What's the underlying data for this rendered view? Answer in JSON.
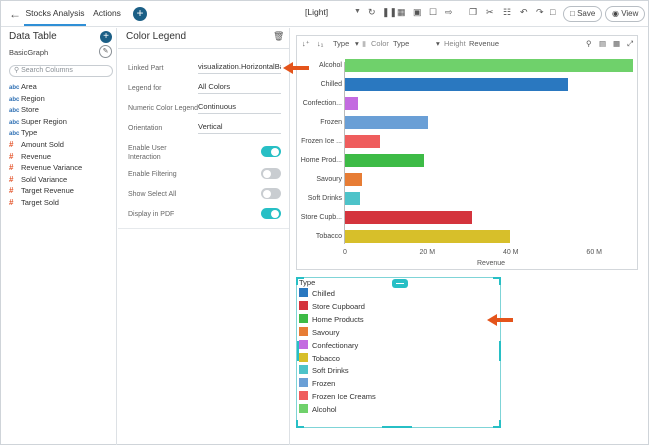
{
  "topbar": {
    "back_icon": "arrow-left-icon",
    "tabs": [
      "Stocks Analysis",
      "Actions"
    ],
    "theme": "[Light]",
    "save_label": "Save",
    "view_label": "View"
  },
  "left_panel": {
    "title": "Data Table",
    "subtitle": "BasicGraph",
    "search_placeholder": "Search Columns",
    "fields": [
      {
        "type": "abc",
        "name": "Area"
      },
      {
        "type": "abc",
        "name": "Region"
      },
      {
        "type": "abc",
        "name": "Store"
      },
      {
        "type": "abc",
        "name": "Super Region"
      },
      {
        "type": "abc",
        "name": "Type"
      },
      {
        "type": "#",
        "name": "Amount Sold"
      },
      {
        "type": "#",
        "name": "Revenue"
      },
      {
        "type": "#",
        "name": "Revenue Variance"
      },
      {
        "type": "#",
        "name": "Sold Variance"
      },
      {
        "type": "#",
        "name": "Target Revenue"
      },
      {
        "type": "#",
        "name": "Target Sold"
      }
    ]
  },
  "mid_panel": {
    "title": "Color Legend",
    "rows": [
      {
        "label": "Linked Part",
        "value": "visualization.HorizontalBar"
      },
      {
        "label": "Legend for",
        "value": "All Colors"
      },
      {
        "label": "Numeric Color Legend",
        "value": "Continuous"
      },
      {
        "label": "Orientation",
        "value": "Vertical"
      }
    ],
    "toggles": [
      {
        "label": "Enable User Interaction",
        "on": true
      },
      {
        "label": "Enable Filtering",
        "on": false
      },
      {
        "label": "Show Select All",
        "on": false
      },
      {
        "label": "Display in PDF",
        "on": true
      }
    ]
  },
  "chart_toolbar": {
    "sort_type": "Type",
    "color_label": "Color",
    "color_value": "Type",
    "height_label": "Height",
    "height_value": "Revenue"
  },
  "chart_data": {
    "type": "bar",
    "orientation": "horizontal",
    "categories": [
      "Alcohol",
      "Chilled",
      "Confection...",
      "Frozen",
      "Frozen Ice ...",
      "Home Prod...",
      "Savoury",
      "Soft Drinks",
      "Store Cupb...",
      "Tobacco"
    ],
    "values": [
      69,
      53.5,
      3,
      20,
      8.5,
      19,
      4,
      3.5,
      30.5,
      39.5
    ],
    "colors": [
      "#6fd16b",
      "#2a78c0",
      "#c36be0",
      "#6a9fd6",
      "#ef5d5d",
      "#3dbb46",
      "#e77d35",
      "#4dc3c9",
      "#d4343d",
      "#d7bf2a"
    ],
    "xlabel": "Revenue",
    "ticks": [
      "0",
      "20 M",
      "40 M",
      "60 M"
    ],
    "xlim": [
      0,
      69
    ]
  },
  "legend": {
    "title": "Type",
    "items": [
      {
        "name": "Chilled",
        "color": "#2a78c0"
      },
      {
        "name": "Store Cupboard",
        "color": "#d4343d"
      },
      {
        "name": "Home Products",
        "color": "#3dbb46"
      },
      {
        "name": "Savoury",
        "color": "#e77d35"
      },
      {
        "name": "Confectionary",
        "color": "#c36be0"
      },
      {
        "name": "Tobacco",
        "color": "#d7bf2a"
      },
      {
        "name": "Soft Drinks",
        "color": "#4dc3c9"
      },
      {
        "name": "Frozen",
        "color": "#6a9fd6"
      },
      {
        "name": "Frozen Ice Creams",
        "color": "#ef5d5d"
      },
      {
        "name": "Alcohol",
        "color": "#6fd16b"
      }
    ]
  }
}
